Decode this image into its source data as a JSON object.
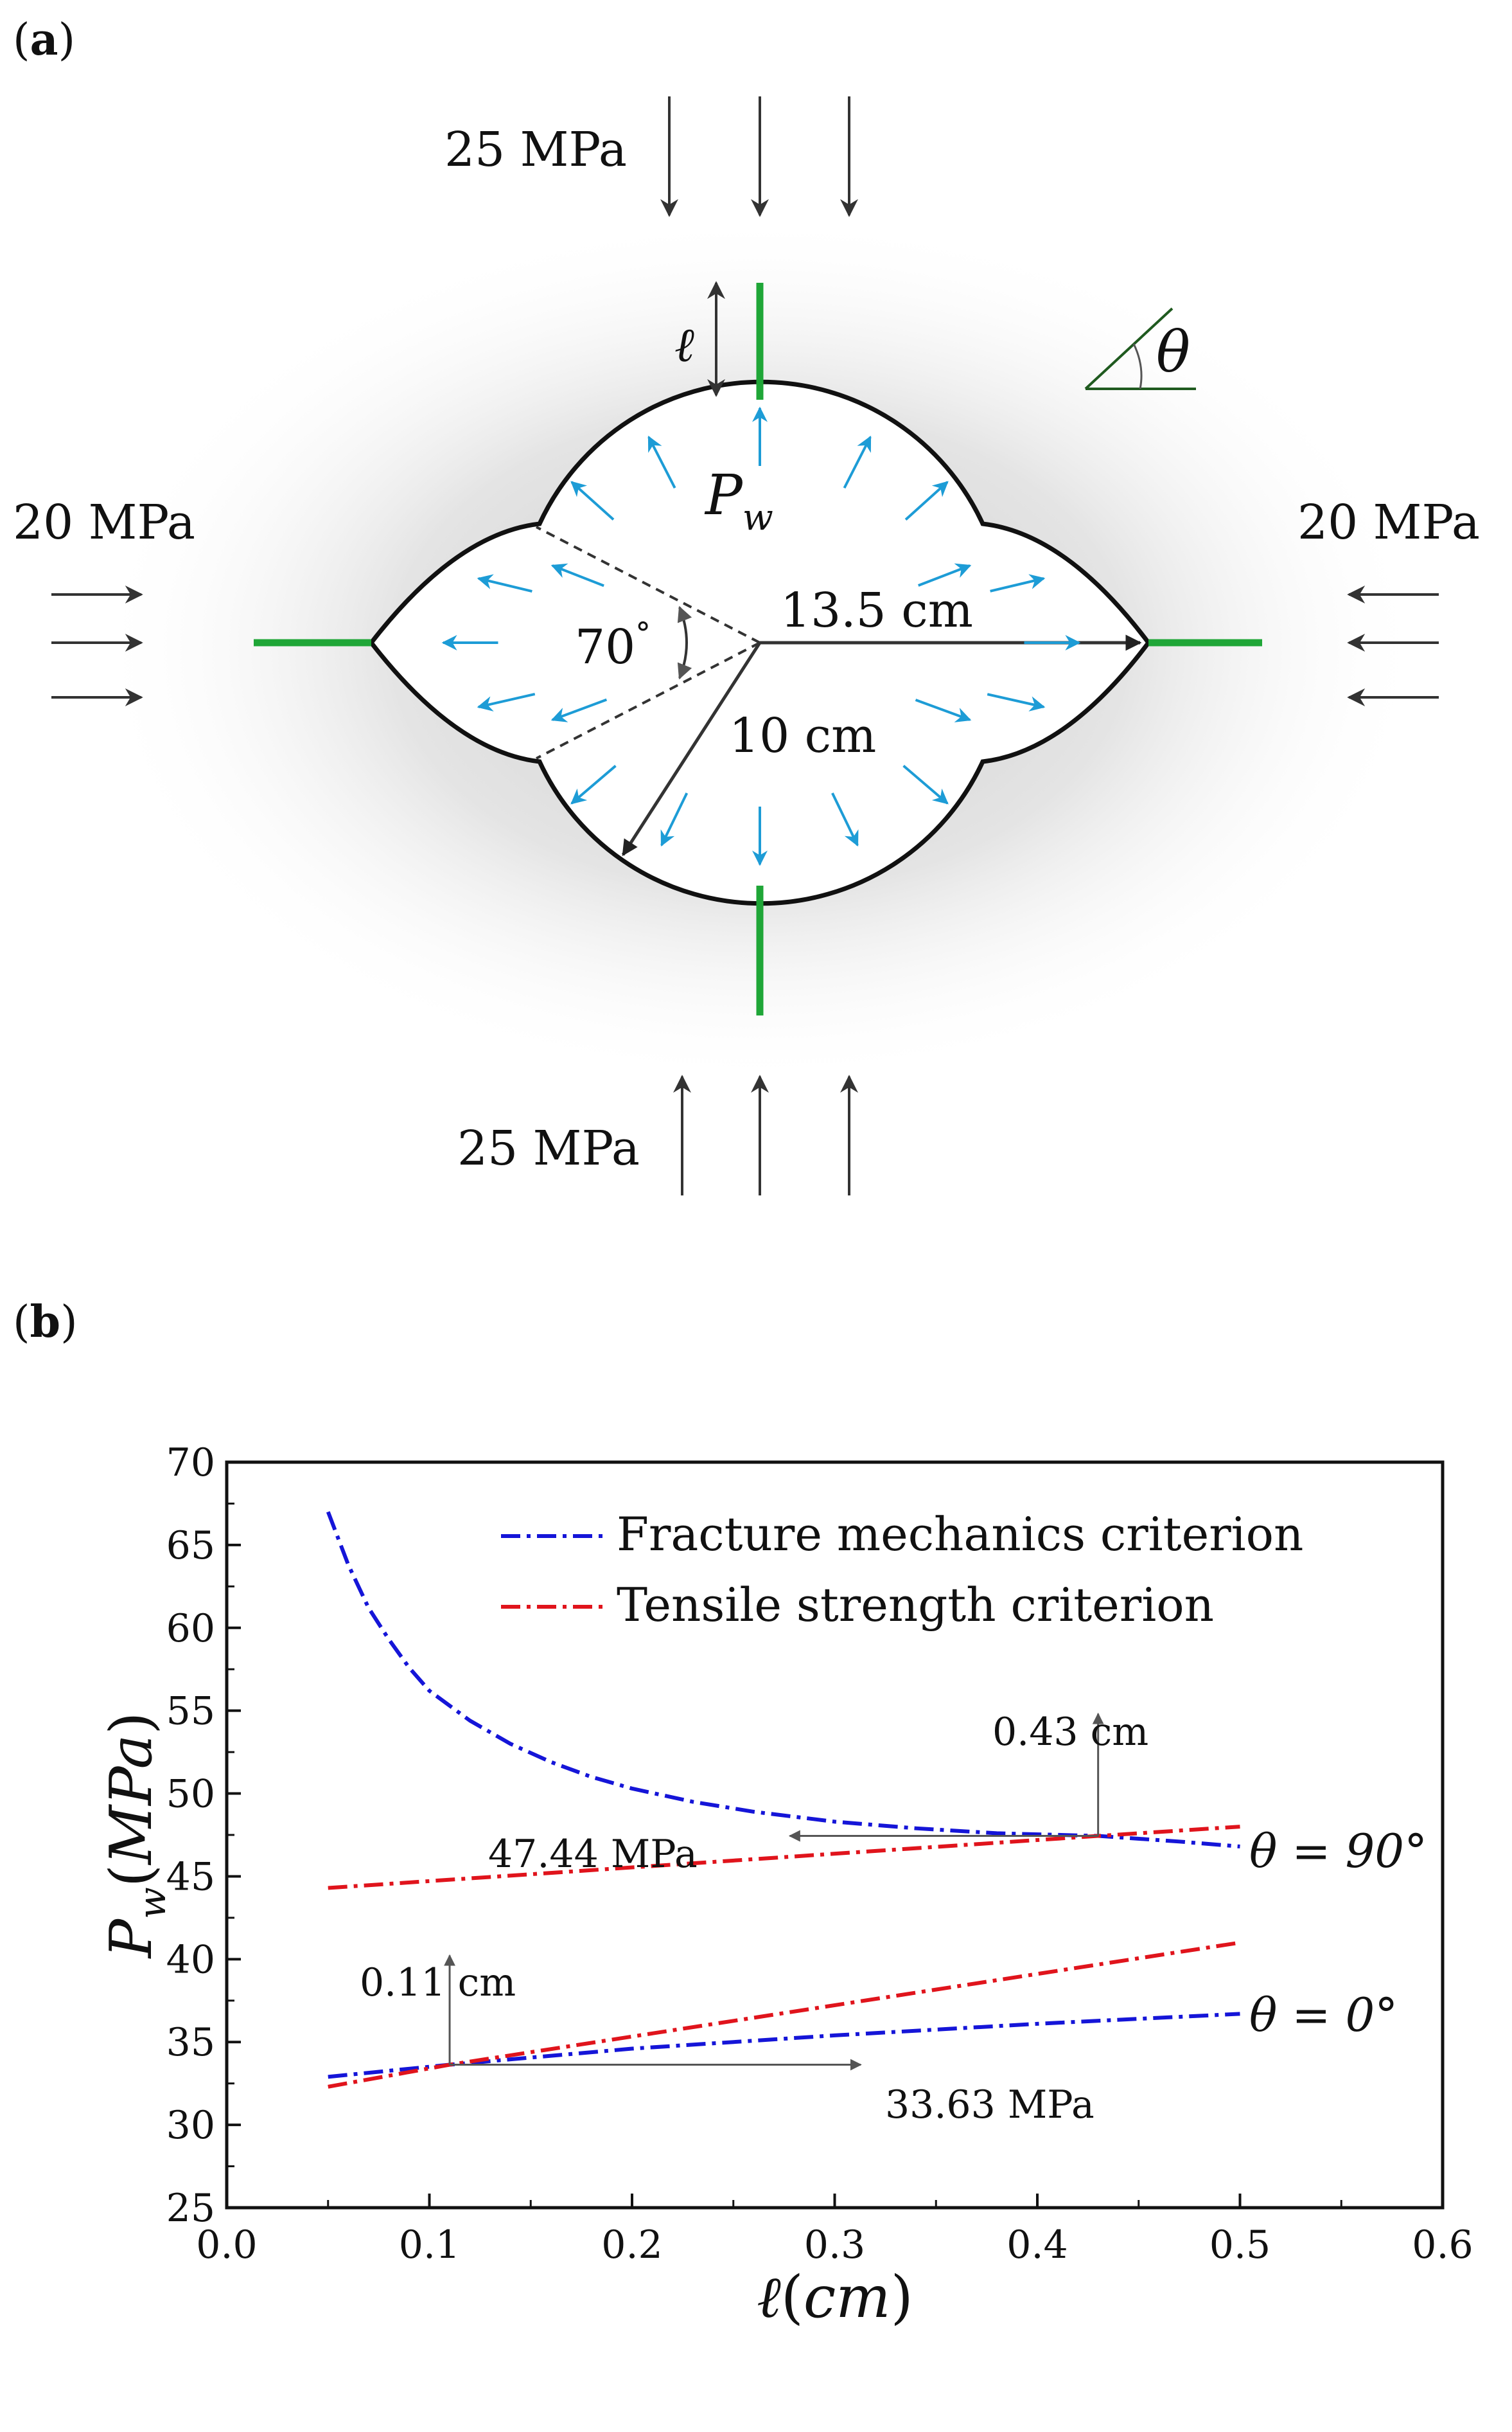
{
  "panel_a": {
    "label_open": "(",
    "label_letter": "a",
    "label_close": ")",
    "top_stress": "25 MPa",
    "bottom_stress": "25 MPa",
    "left_stress": "20 MPa",
    "right_stress": "20 MPa",
    "pressure_symbol": "P",
    "pressure_subscript": "w",
    "length_symbol": "ℓ",
    "angle_symbol": "θ",
    "angle_value": "70",
    "degree_mark": "°",
    "radius_large": "13.5 cm",
    "radius_small": "10 cm",
    "colors": {
      "crack": "#1fa637",
      "pressure_arrow": "#1d9cd6",
      "boundary": "#111111",
      "stress_arrow": "#333333",
      "angle_mark": "#1f5a1f"
    }
  },
  "panel_b": {
    "label_open": "(",
    "label_letter": "b",
    "label_close": ")",
    "ylabel_symbol": "P",
    "ylabel_subscript": "w",
    "ylabel_unit": "MPa",
    "xlabel_symbol": "ℓ",
    "xlabel_unit": "cm",
    "annotations": {
      "intersect_90_length": "0.43 cm",
      "intersect_90_pressure": "47.44 MPa",
      "intersect_0_length": "0.11 cm",
      "intersect_0_pressure": "33.63 MPa",
      "theta90_label": "θ = 90°",
      "theta0_label": "θ = 0°"
    }
  },
  "chart_data": {
    "type": "line",
    "title": "",
    "xlabel": "ℓ (cm)",
    "ylabel": "Pw (MPa)",
    "xlim": [
      0.0,
      0.6
    ],
    "ylim": [
      25,
      70
    ],
    "xticks": [
      "0.0",
      "0.1",
      "0.2",
      "0.3",
      "0.4",
      "0.5",
      "0.6"
    ],
    "yticks": [
      "25",
      "30",
      "35",
      "40",
      "45",
      "50",
      "55",
      "60",
      "65",
      "70"
    ],
    "grid": false,
    "legend_position": "top",
    "legend": [
      {
        "label": "Fracture mechanics criterion",
        "color": "#1515d8"
      },
      {
        "label": "Tensile strength criterion",
        "color": "#e0141c"
      }
    ],
    "series": [
      {
        "name": "Fracture mechanics criterion, θ = 90°",
        "color": "#1515d8",
        "x": [
          0.05,
          0.06,
          0.07,
          0.08,
          0.09,
          0.1,
          0.12,
          0.14,
          0.16,
          0.18,
          0.2,
          0.23,
          0.26,
          0.3,
          0.34,
          0.38,
          0.43,
          0.47,
          0.5
        ],
        "y": [
          67.0,
          63.8,
          61.2,
          59.3,
          57.6,
          56.2,
          54.4,
          53.0,
          51.9,
          51.0,
          50.3,
          49.5,
          48.9,
          48.3,
          47.9,
          47.6,
          47.44,
          47.1,
          46.8
        ]
      },
      {
        "name": "Tensile strength criterion, θ = 90°",
        "color": "#e0141c",
        "x": [
          0.05,
          0.43,
          0.5
        ],
        "y": [
          44.3,
          47.44,
          48.0
        ]
      },
      {
        "name": "Fracture mechanics criterion, θ = 0°",
        "color": "#1515d8",
        "x": [
          0.05,
          0.11,
          0.2,
          0.3,
          0.4,
          0.5
        ],
        "y": [
          32.9,
          33.63,
          34.6,
          35.4,
          36.1,
          36.7
        ]
      },
      {
        "name": "Tensile strength criterion, θ = 0°",
        "color": "#e0141c",
        "x": [
          0.05,
          0.11,
          0.5
        ],
        "y": [
          32.3,
          33.63,
          41.0
        ]
      }
    ]
  }
}
